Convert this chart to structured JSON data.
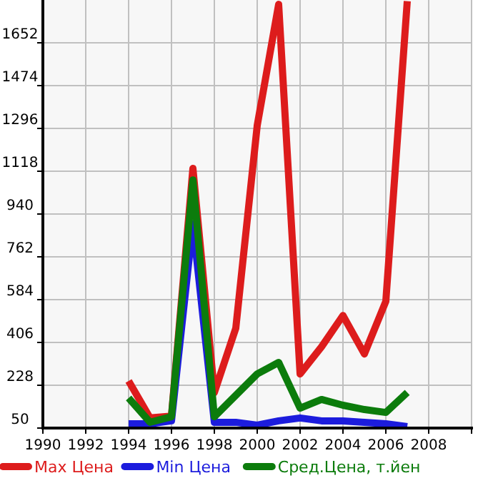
{
  "chart_data": {
    "type": "line",
    "x": [
      1994,
      1995,
      1996,
      1997,
      1998,
      1999,
      2000,
      2001,
      2002,
      2003,
      2004,
      2005,
      2006,
      2007
    ],
    "series": [
      {
        "name": "Max Цена",
        "color": "#dd1c1c",
        "values": [
          246,
          92,
          100,
          1130,
          198,
          465,
          1308,
          1812,
          275,
          388,
          518,
          358,
          577,
          1825
        ]
      },
      {
        "name": "Min Цена",
        "color": "#1c1cdd",
        "values": [
          68,
          68,
          80,
          900,
          74,
          74,
          62,
          80,
          92,
          80,
          80,
          74,
          68,
          56
        ]
      },
      {
        "name": "Сред.Цена, т.йен",
        "color": "#0c7c0c",
        "values": [
          175,
          74,
          97,
          1082,
          97,
          186,
          275,
          323,
          133,
          169,
          145,
          127,
          115,
          198
        ]
      }
    ],
    "xlim": [
      1990,
      2010
    ],
    "xticks": [
      1990,
      1992,
      1994,
      1996,
      1998,
      2000,
      2002,
      2004,
      2006,
      2008
    ],
    "ylim": [
      50,
      1830
    ],
    "yticks": [
      50,
      228,
      406,
      584,
      762,
      940,
      1118,
      1296,
      1474,
      1652
    ],
    "grid": true,
    "legend": "bottom",
    "line_style": "solid"
  }
}
